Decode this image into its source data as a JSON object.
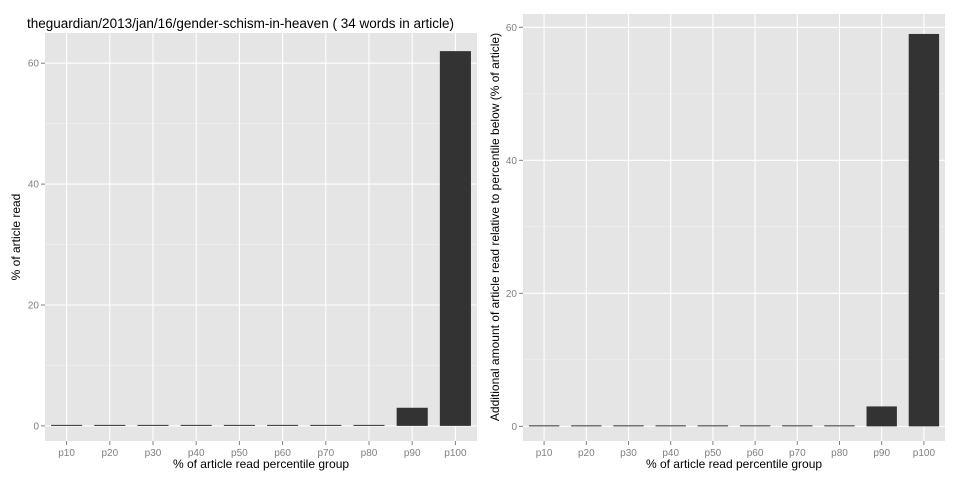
{
  "chart_data": [
    {
      "type": "bar",
      "title": "theguardian/2013/jan/16/gender-schism-in-heaven ( 34 words in article)",
      "xlabel": "% of article read percentile group",
      "ylabel": "% of article read",
      "categories": [
        "p10",
        "p20",
        "p30",
        "p40",
        "p50",
        "p60",
        "p70",
        "p80",
        "p90",
        "p100"
      ],
      "values": [
        0,
        0,
        0,
        0,
        0,
        0,
        0,
        0,
        3,
        62
      ],
      "yticks": [
        0,
        20,
        40,
        60
      ],
      "ylim": [
        -2.5,
        65
      ],
      "grid": true,
      "bar_color": "#333333"
    },
    {
      "type": "bar",
      "title": "",
      "xlabel": "% of article read percentile group",
      "ylabel": "Additional amount of article read relative to percentile below (% of article)",
      "categories": [
        "p10",
        "p20",
        "p30",
        "p40",
        "p50",
        "p60",
        "p70",
        "p80",
        "p90",
        "p100"
      ],
      "values": [
        0,
        0,
        0,
        0,
        0,
        0,
        0,
        0,
        3,
        59
      ],
      "yticks": [
        0,
        20,
        40,
        60
      ],
      "ylim": [
        -2.2,
        62
      ],
      "grid": true,
      "bar_color": "#333333"
    }
  ]
}
